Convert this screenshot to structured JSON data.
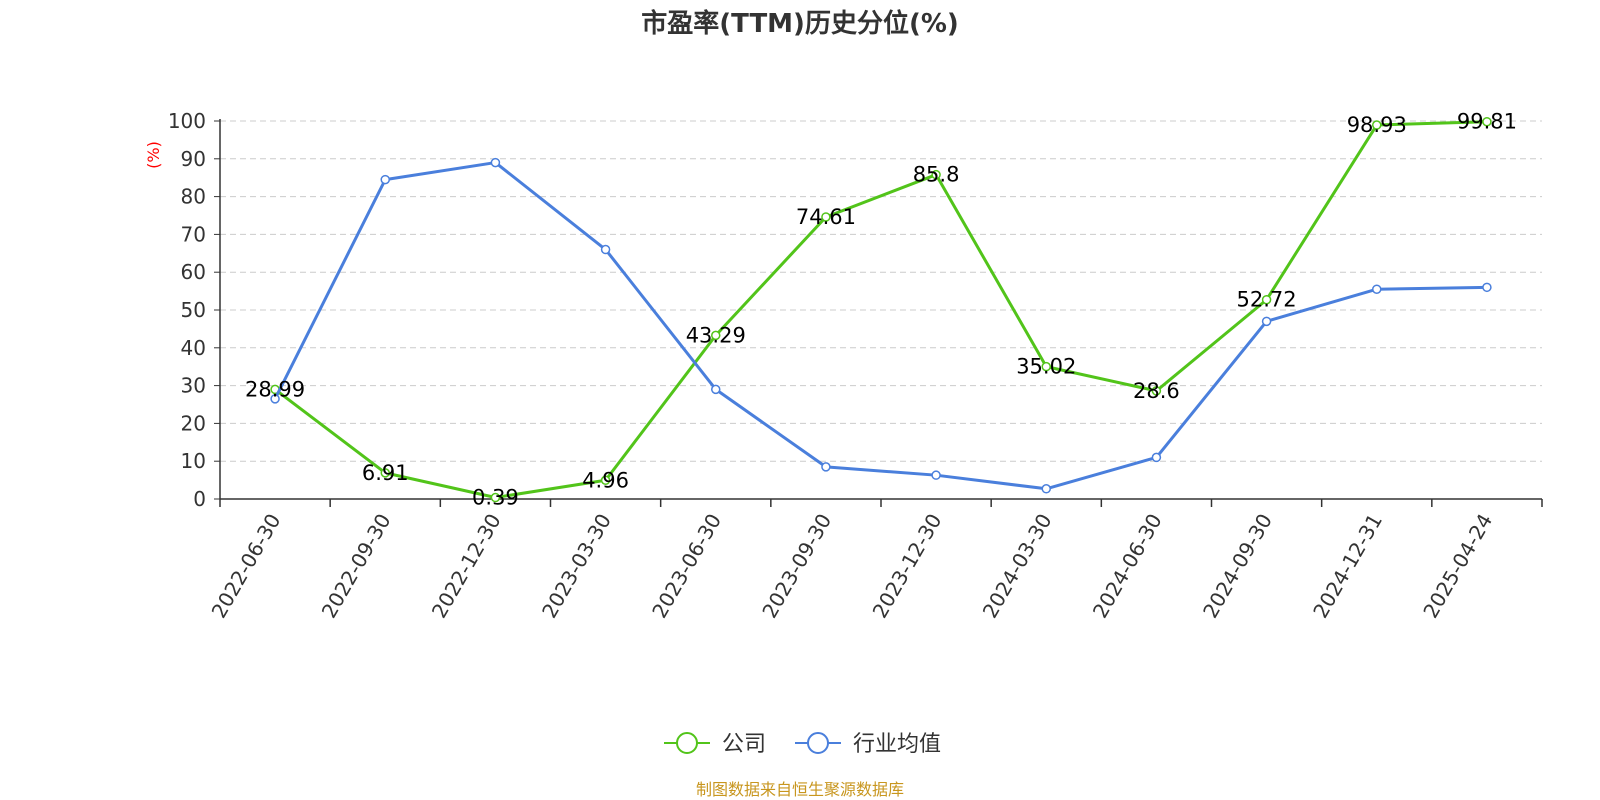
{
  "chart_data": {
    "type": "line",
    "title": "市盈率(TTM)历史分位(%)",
    "ylabel": "(%)",
    "xlabel": "",
    "ylim": [
      0,
      100
    ],
    "yticks": [
      "0",
      "10",
      "20",
      "30",
      "40",
      "50",
      "60",
      "70",
      "80",
      "90",
      "100"
    ],
    "grid": true,
    "legend_position": "bottom",
    "categories": [
      "2022-06-30",
      "2022-09-30",
      "2022-12-30",
      "2023-03-30",
      "2023-06-30",
      "2023-09-30",
      "2023-12-30",
      "2024-03-30",
      "2024-06-30",
      "2024-09-30",
      "2024-12-31",
      "2025-04-24"
    ],
    "series": [
      {
        "name": "公司",
        "color": "#52c41a",
        "values": [
          28.99,
          6.91,
          0.39,
          4.96,
          43.29,
          74.61,
          85.8,
          35.02,
          28.6,
          52.72,
          98.93,
          99.81
        ],
        "labels": [
          "28.99",
          "6.91",
          "0.39",
          "4.96",
          "43.29",
          "74.61",
          "85.8",
          "35.02",
          "28.6",
          "52.72",
          "98.93",
          "99.81"
        ]
      },
      {
        "name": "行业均值",
        "color": "#4a7fdc",
        "values": [
          26.5,
          84.5,
          89.0,
          66.0,
          29.0,
          8.5,
          6.3,
          2.7,
          11.0,
          47.0,
          55.5,
          56.0
        ]
      }
    ],
    "source": "制图数据来自恒生聚源数据库"
  }
}
